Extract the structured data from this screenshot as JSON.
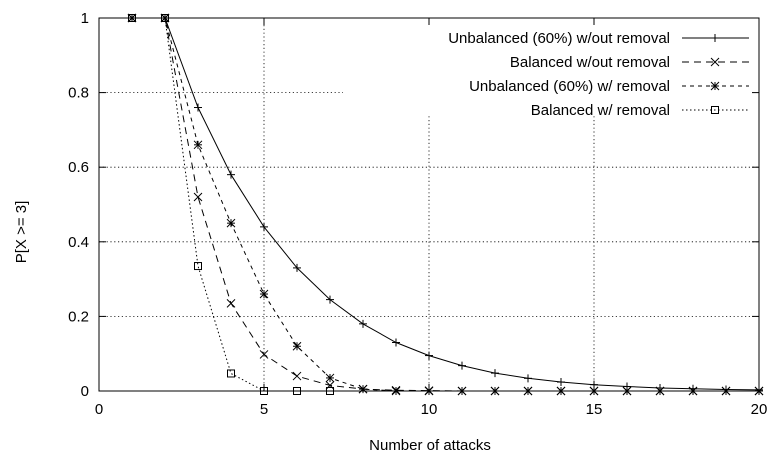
{
  "chart_data": {
    "type": "line",
    "title": "",
    "xlabel": "Number of attacks",
    "ylabel": "P[X >= 3]",
    "xlim": [
      0,
      20
    ],
    "ylim": [
      0,
      1
    ],
    "xticks": [
      "0",
      "5",
      "10",
      "15",
      "20"
    ],
    "yticks": [
      "0",
      "0.2",
      "0.4",
      "0.6",
      "0.8",
      "1"
    ],
    "grid": "dotted",
    "legend_position": "top-right",
    "series": [
      {
        "name": "Unbalanced (60%) w/out removal",
        "line_style": "solid",
        "marker": "plus",
        "color": "#000000",
        "x": [
          1,
          2,
          3,
          4,
          5,
          6,
          7,
          8,
          9,
          10,
          11,
          12,
          13,
          14,
          15,
          16,
          17,
          18,
          19,
          20
        ],
        "y": [
          1.0,
          1.0,
          0.76,
          0.58,
          0.44,
          0.33,
          0.245,
          0.18,
          0.13,
          0.095,
          0.068,
          0.048,
          0.034,
          0.024,
          0.017,
          0.012,
          0.008,
          0.006,
          0.004,
          0.003
        ]
      },
      {
        "name": "Balanced w/out removal",
        "line_style": "dashed",
        "marker": "x",
        "color": "#000000",
        "x": [
          1,
          2,
          3,
          4,
          5,
          6,
          7,
          8,
          9,
          10,
          11,
          12,
          13,
          14,
          15,
          16,
          17,
          18,
          19,
          20
        ],
        "y": [
          1.0,
          1.0,
          0.52,
          0.235,
          0.098,
          0.04,
          0.015,
          0.005,
          0.002,
          0.001,
          0,
          0,
          0,
          0,
          0,
          0,
          0,
          0,
          0,
          0
        ]
      },
      {
        "name": "Unbalanced (60%) w/ removal",
        "line_style": "short-dashed",
        "marker": "asterisk",
        "color": "#000000",
        "x": [
          1,
          2,
          3,
          4,
          5,
          6,
          7,
          8,
          9,
          10,
          11,
          12,
          13,
          14,
          15,
          16,
          17,
          18,
          19,
          20
        ],
        "y": [
          1.0,
          1.0,
          0.66,
          0.45,
          0.26,
          0.12,
          0.035,
          0.005,
          0,
          0,
          0,
          0,
          0,
          0,
          0,
          0,
          0,
          0,
          0,
          0
        ]
      },
      {
        "name": "Balanced w/ removal",
        "line_style": "dotted",
        "marker": "square",
        "color": "#000000",
        "x": [
          1,
          2,
          3,
          4,
          5,
          6,
          7
        ],
        "y": [
          1.0,
          1.0,
          0.335,
          0.047,
          0,
          0,
          0
        ]
      }
    ]
  }
}
